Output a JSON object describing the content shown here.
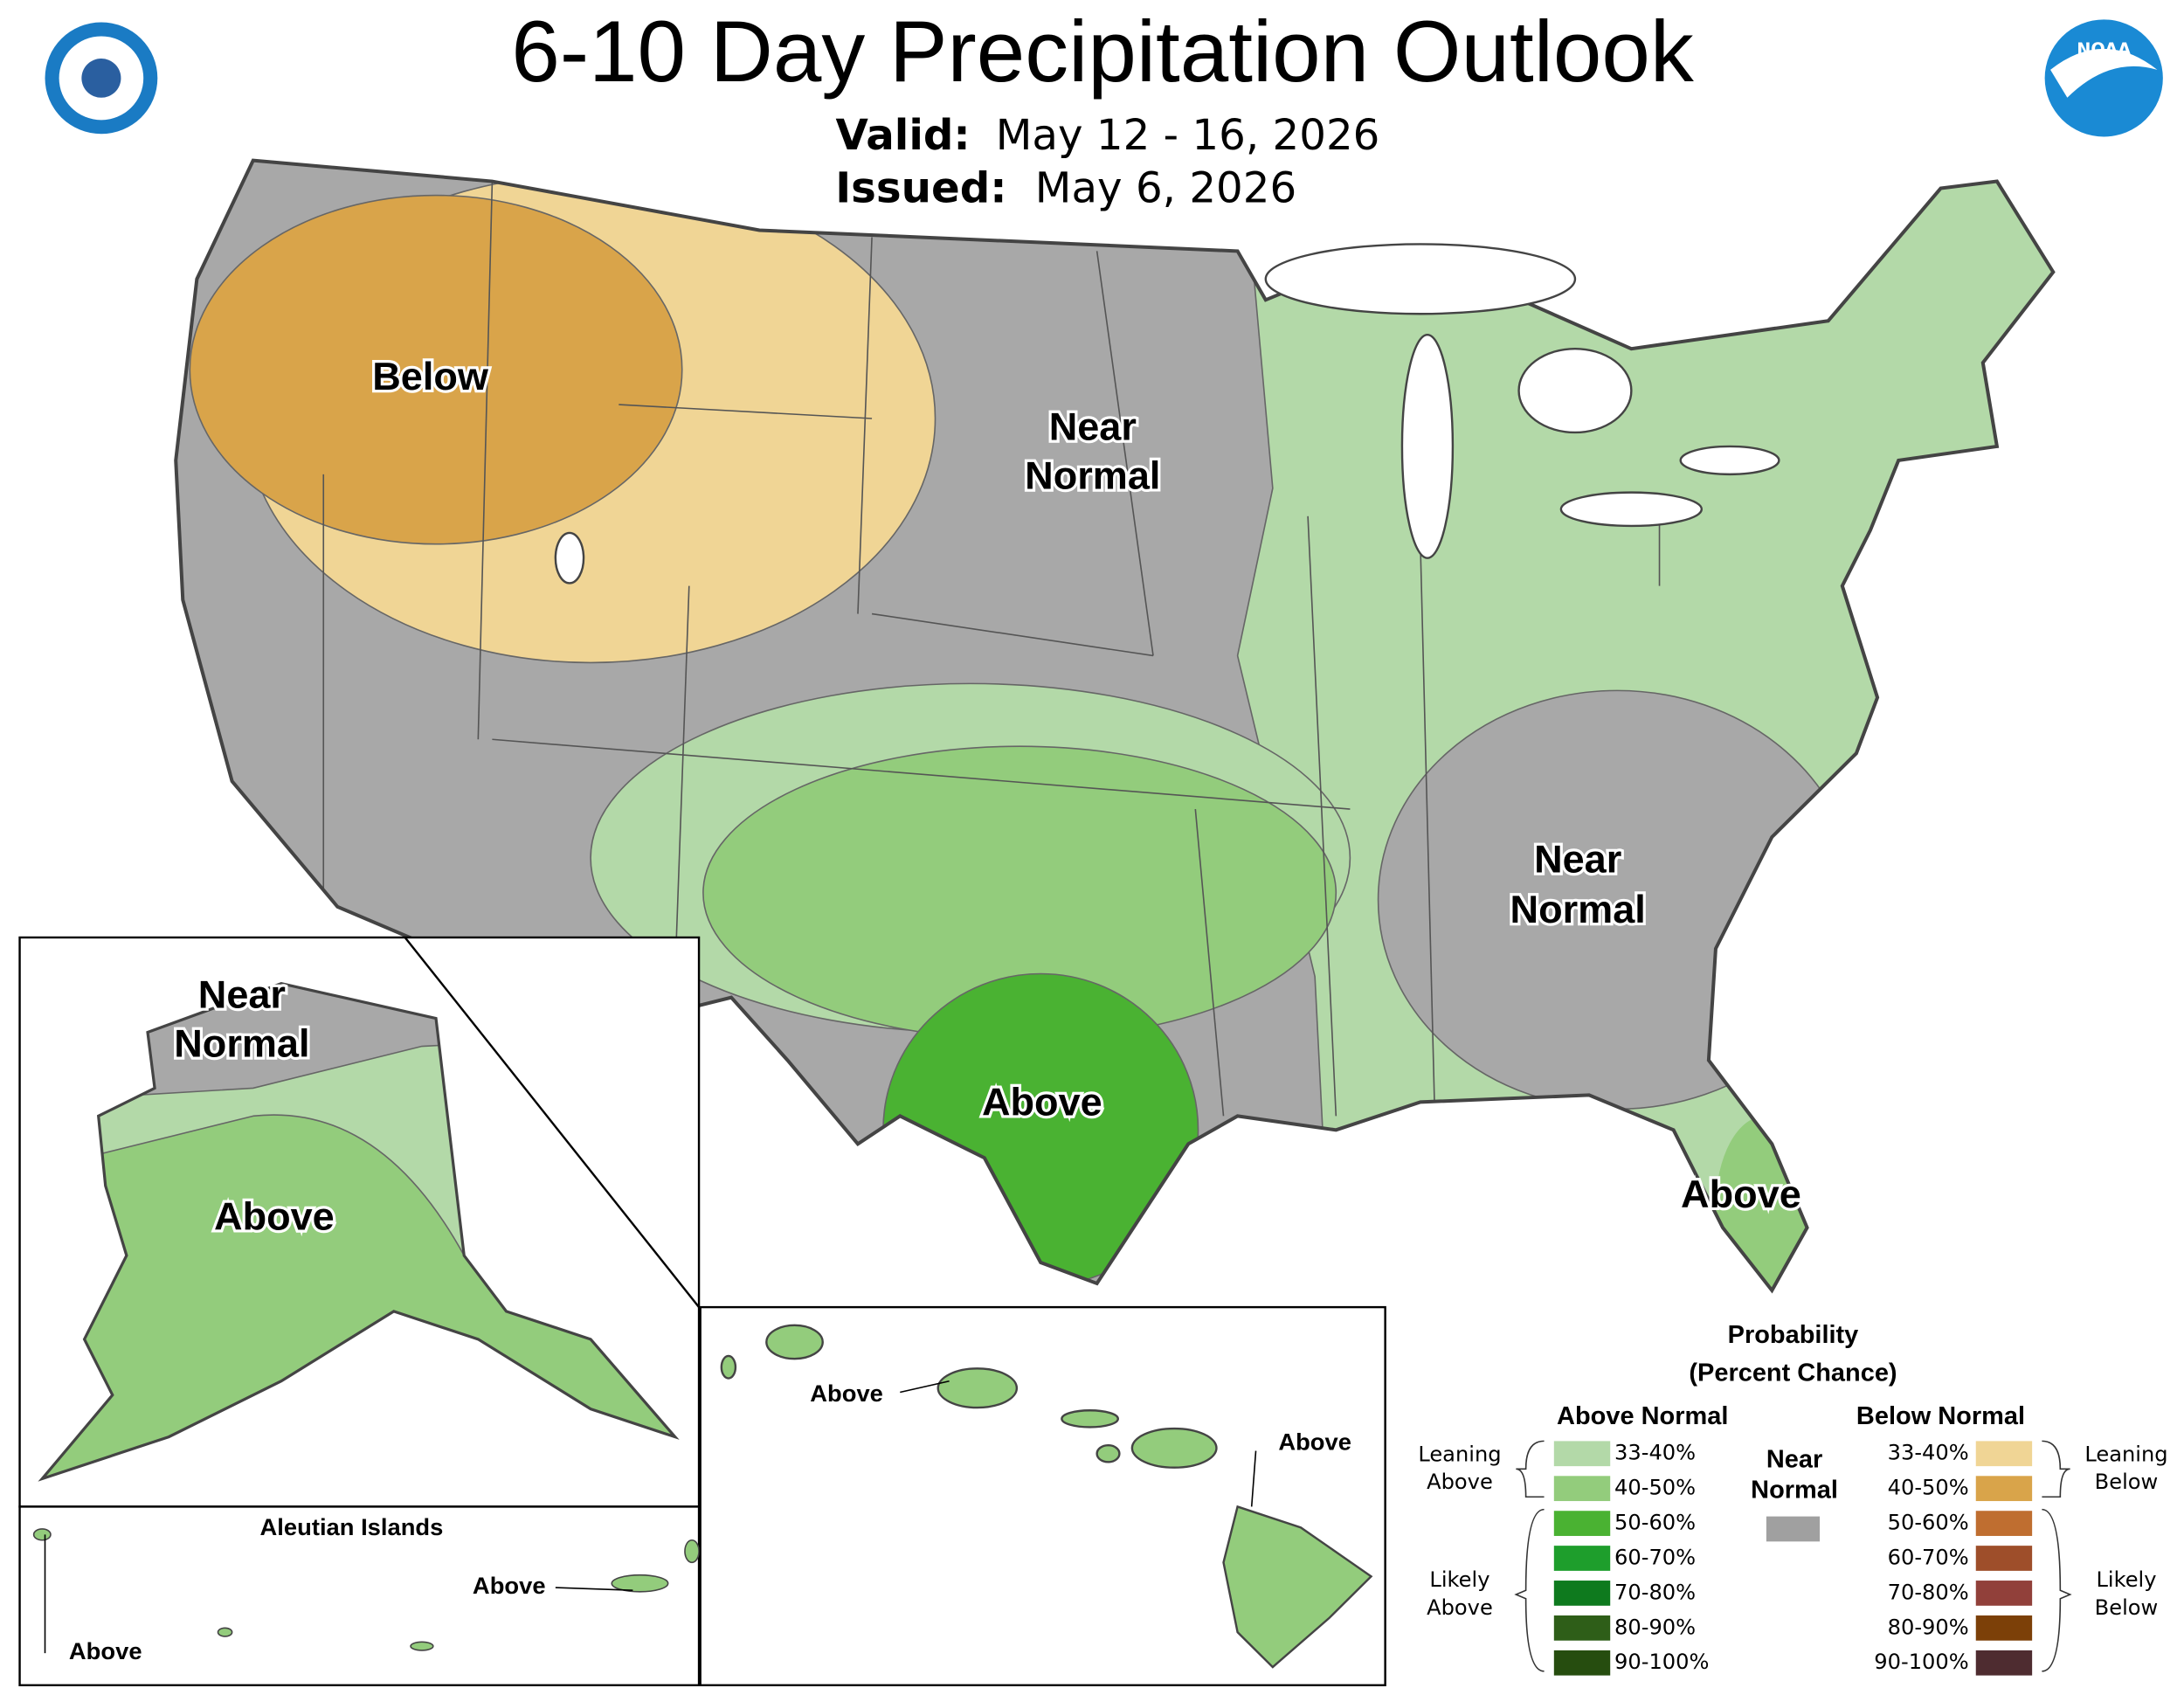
{
  "header": {
    "title": "6-10 Day Precipitation Outlook",
    "valid_label": "Valid:",
    "valid": "May 12 - 16, 2026",
    "issued_label": "Issued:",
    "issued": "May 6, 2026"
  },
  "conus_labels": {
    "below": "Below",
    "near_normal_north": [
      "Near",
      "Normal"
    ],
    "above_texas": "Above",
    "near_normal_southeast": [
      "Near",
      "Normal"
    ],
    "above_florida": "Above"
  },
  "alaska_labels": {
    "near_normal": [
      "Near",
      "Normal"
    ],
    "above": "Above"
  },
  "aleutian": {
    "title": "Aleutian Islands",
    "above_east": "Above",
    "above_west": "Above"
  },
  "hawaii_labels": {
    "above_oahu": "Above",
    "above_big_island": "Above"
  },
  "legend": {
    "title": [
      "Probability",
      "(Percent Chance)"
    ],
    "above_heading": "Above Normal",
    "below_heading": "Below Normal",
    "near_normal": [
      "Near",
      "Normal"
    ],
    "near_normal_color": "#a0a0a0",
    "above": [
      {
        "range": "33-40%",
        "color": "#b3d9a8"
      },
      {
        "range": "40-50%",
        "color": "#93cc7c"
      },
      {
        "range": "50-60%",
        "color": "#4ab232"
      },
      {
        "range": "60-70%",
        "color": "#1e9e2c"
      },
      {
        "range": "70-80%",
        "color": "#0e7a1e"
      },
      {
        "range": "80-90%",
        "color": "#2e5e18"
      },
      {
        "range": "90-100%",
        "color": "#264d0f"
      }
    ],
    "below": [
      {
        "range": "33-40%",
        "color": "#f0d595"
      },
      {
        "range": "40-50%",
        "color": "#d9a44a"
      },
      {
        "range": "50-60%",
        "color": "#bf6e30"
      },
      {
        "range": "60-70%",
        "color": "#9e4e2a"
      },
      {
        "range": "70-80%",
        "color": "#91403a"
      },
      {
        "range": "80-90%",
        "color": "#7c4008"
      },
      {
        "range": "90-100%",
        "color": "#4e2c30"
      }
    ],
    "leaning_above": [
      "Leaning",
      "Above"
    ],
    "likely_above": [
      "Likely",
      "Above"
    ],
    "leaning_below": [
      "Leaning",
      "Below"
    ],
    "likely_below": [
      "Likely",
      "Below"
    ]
  }
}
